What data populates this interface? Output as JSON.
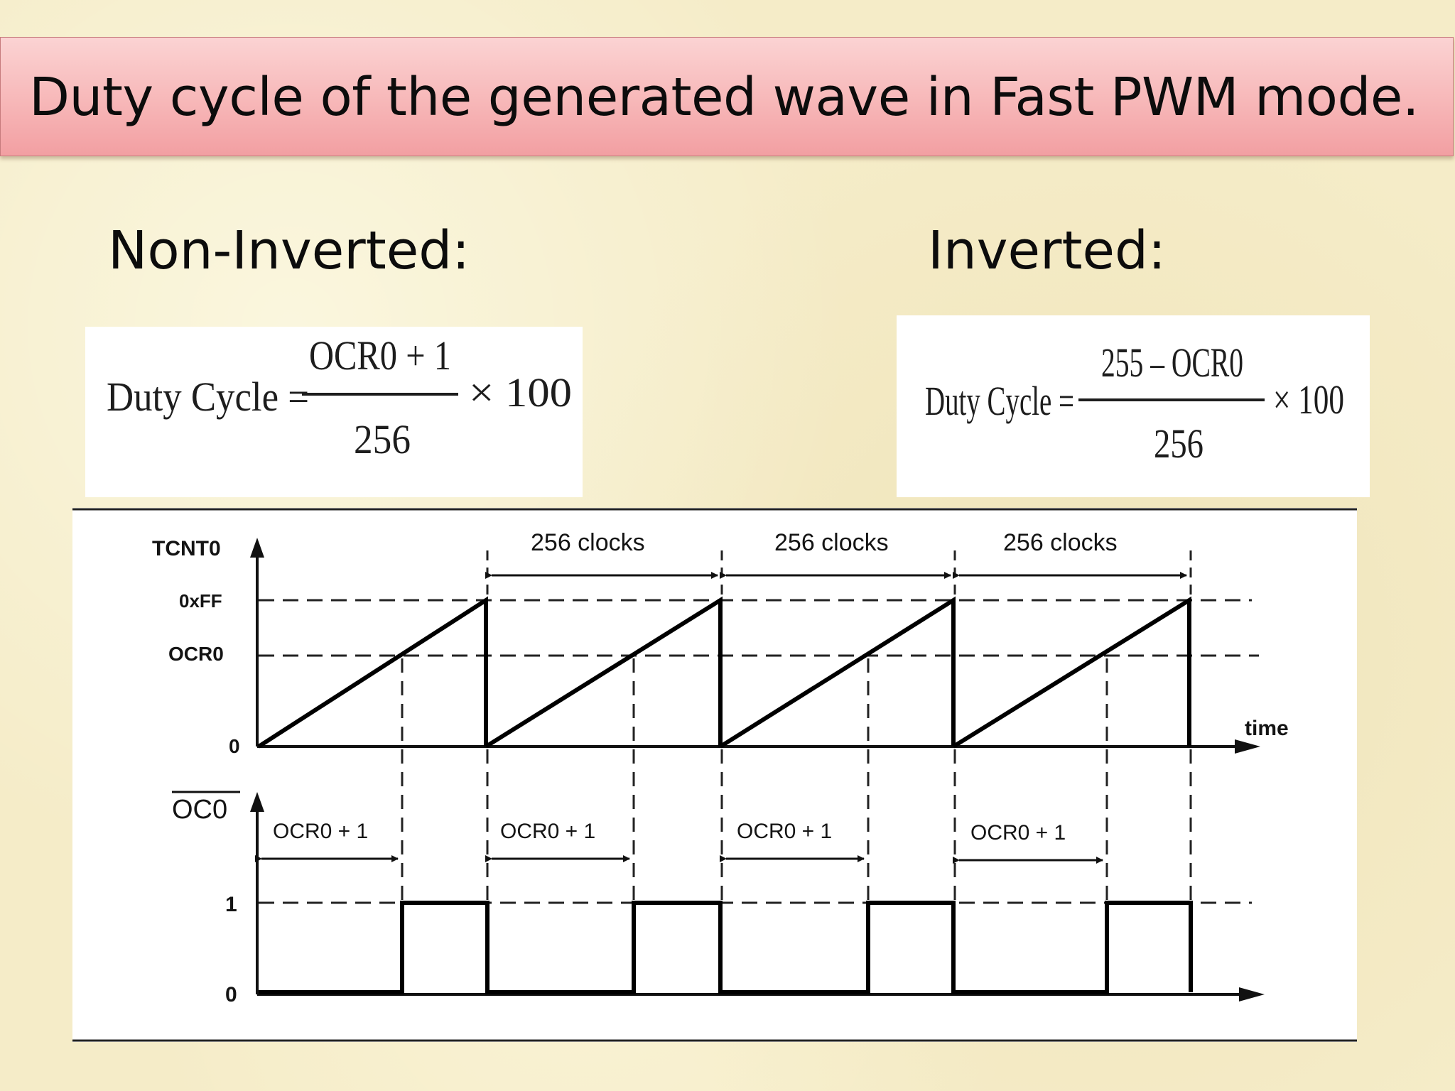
{
  "slide": {
    "title": "Duty cycle of the generated wave in Fast PWM mode.",
    "non_inverted_label": "Non-Inverted:",
    "inverted_label": "Inverted:"
  },
  "formulas": {
    "non_inverted": {
      "lhs": "Duty Cycle =",
      "numerator": "OCR0 + 1",
      "denominator": "256",
      "multiplier": "× 100"
    },
    "inverted": {
      "lhs": "Duty Cycle =",
      "numerator": "255 – OCR0",
      "denominator": "256",
      "multiplier": "× 100"
    }
  },
  "diagram": {
    "top_axis_label": "TCNT0",
    "level_top": "0xFF",
    "level_mid": "OCR0",
    "level_zero": "0",
    "time_label": "time",
    "period_label": "256 clocks",
    "bottom_axis_label": "OC0",
    "pulse_label": "OCR0 + 1",
    "high_label": "1",
    "low_label": "0"
  }
}
